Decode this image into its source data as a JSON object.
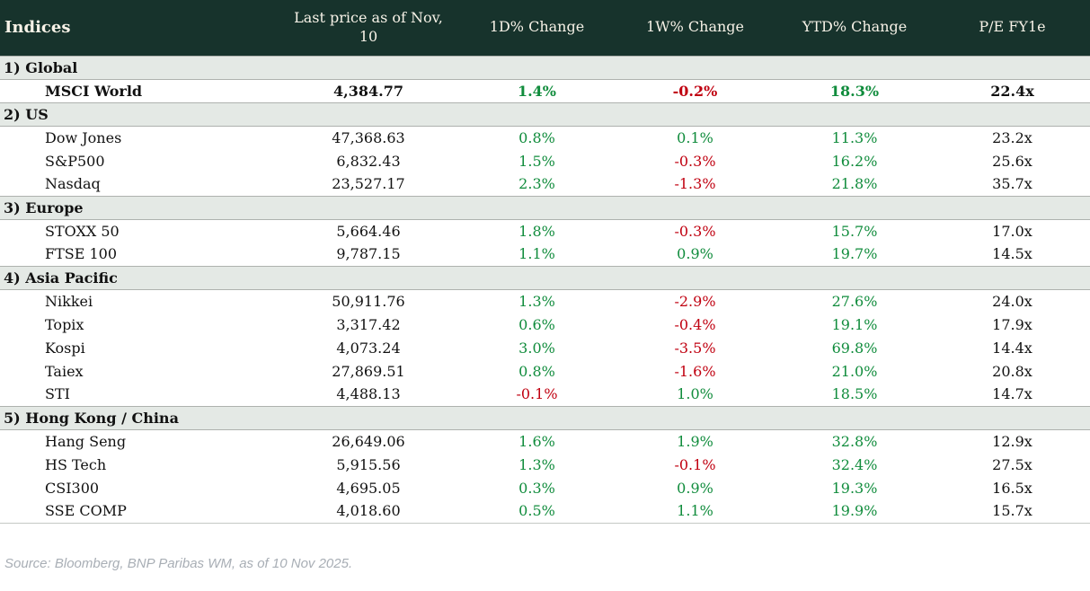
{
  "header": {
    "col_indices": "Indices",
    "col_last_price": "Last price as of Nov, 10",
    "col_1d": "1D% Change",
    "col_1w": "1W% Change",
    "col_ytd": "YTD% Change",
    "col_pe": "P/E FY1e"
  },
  "sections": [
    {
      "label": "1) Global",
      "rows": [
        {
          "name": "MSCI World",
          "last_price": "4,384.77",
          "d1": "1.4%",
          "w1": "-0.2%",
          "ytd": "18.3%",
          "pe": "22.4x",
          "bold": true
        }
      ]
    },
    {
      "label": "2) US",
      "rows": [
        {
          "name": "Dow Jones",
          "last_price": "47,368.63",
          "d1": "0.8%",
          "w1": "0.1%",
          "ytd": "11.3%",
          "pe": "23.2x",
          "bold": false
        },
        {
          "name": "S&P500",
          "last_price": "6,832.43",
          "d1": "1.5%",
          "w1": "-0.3%",
          "ytd": "16.2%",
          "pe": "25.6x",
          "bold": false
        },
        {
          "name": "Nasdaq",
          "last_price": "23,527.17",
          "d1": "2.3%",
          "w1": "-1.3%",
          "ytd": "21.8%",
          "pe": "35.7x",
          "bold": false
        }
      ]
    },
    {
      "label": "3) Europe",
      "rows": [
        {
          "name": "STOXX 50",
          "last_price": "5,664.46",
          "d1": "1.8%",
          "w1": "-0.3%",
          "ytd": "15.7%",
          "pe": "17.0x",
          "bold": false
        },
        {
          "name": "FTSE 100",
          "last_price": "9,787.15",
          "d1": "1.1%",
          "w1": "0.9%",
          "ytd": "19.7%",
          "pe": "14.5x",
          "bold": false
        }
      ]
    },
    {
      "label": "4) Asia Pacific",
      "rows": [
        {
          "name": "Nikkei",
          "last_price": "50,911.76",
          "d1": "1.3%",
          "w1": "-2.9%",
          "ytd": "27.6%",
          "pe": "24.0x",
          "bold": false
        },
        {
          "name": "Topix",
          "last_price": "3,317.42",
          "d1": "0.6%",
          "w1": "-0.4%",
          "ytd": "19.1%",
          "pe": "17.9x",
          "bold": false
        },
        {
          "name": "Kospi",
          "last_price": "4,073.24",
          "d1": "3.0%",
          "w1": "-3.5%",
          "ytd": "69.8%",
          "pe": "14.4x",
          "bold": false
        },
        {
          "name": "Taiex",
          "last_price": "27,869.51",
          "d1": "0.8%",
          "w1": "-1.6%",
          "ytd": "21.0%",
          "pe": "20.8x",
          "bold": false
        },
        {
          "name": "STI",
          "last_price": "4,488.13",
          "d1": "-0.1%",
          "w1": "1.0%",
          "ytd": "18.5%",
          "pe": "14.7x",
          "bold": false
        }
      ]
    },
    {
      "label": "5) Hong Kong / China",
      "rows": [
        {
          "name": "Hang Seng",
          "last_price": "26,649.06",
          "d1": "1.6%",
          "w1": "1.9%",
          "ytd": "32.8%",
          "pe": "12.9x",
          "bold": false
        },
        {
          "name": "HS Tech",
          "last_price": "5,915.56",
          "d1": "1.3%",
          "w1": "-0.1%",
          "ytd": "32.4%",
          "pe": "27.5x",
          "bold": false
        },
        {
          "name": "CSI300",
          "last_price": "4,695.05",
          "d1": "0.3%",
          "w1": "0.9%",
          "ytd": "19.3%",
          "pe": "16.5x",
          "bold": false
        },
        {
          "name": "SSE COMP",
          "last_price": "4,018.60",
          "d1": "0.5%",
          "w1": "1.1%",
          "ytd": "19.9%",
          "pe": "15.7x",
          "bold": false
        }
      ]
    }
  ],
  "footer": {
    "source": "Source: Bloomberg, BNP Paribas WM, as of 10 Nov 2025."
  },
  "colors": {
    "header_bg": "#17332c",
    "header_text": "#f7f2e7",
    "section_bg": "#e4e9e5",
    "positive": "#108c3c",
    "negative": "#c00010",
    "source_text": "#a8aeb5"
  }
}
